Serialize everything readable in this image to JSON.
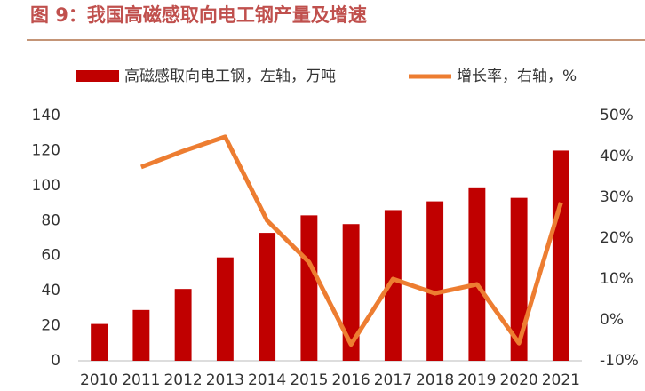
{
  "chart_data": {
    "type": "bar-line",
    "title": "图 9：我国高磁感取向电工钢产量及增速",
    "categories": [
      "2010",
      "2011",
      "2012",
      "2013",
      "2014",
      "2015",
      "2016",
      "2017",
      "2018",
      "2019",
      "2020",
      "2021"
    ],
    "series": [
      {
        "name": "高磁感取向电工钢，左轴，万吨",
        "type": "bar",
        "color": "#c00000",
        "values": [
          21,
          29,
          41,
          59,
          73,
          83,
          78,
          86,
          91,
          99,
          93,
          120
        ]
      },
      {
        "name": "增长率，右轴，%",
        "type": "line",
        "axis": "y2",
        "color": "#ed7d31",
        "values": [
          null,
          37.4,
          41.3,
          44.8,
          24.3,
          14.1,
          -6,
          10,
          6.5,
          8.7,
          -5.7,
          28.7
        ]
      }
    ],
    "ylim": [
      0,
      140
    ],
    "yticks": [
      0,
      20,
      40,
      60,
      80,
      100,
      120,
      140
    ],
    "y2lim": [
      -10,
      50
    ],
    "y2ticks": [
      {
        "value": -10,
        "label": "-10%"
      },
      {
        "value": 0,
        "label": "0%"
      },
      {
        "value": 10,
        "label": "10%"
      },
      {
        "value": 20,
        "label": "20%"
      },
      {
        "value": 30,
        "label": "30%"
      },
      {
        "value": 40,
        "label": "40%"
      },
      {
        "value": 50,
        "label": "50%"
      }
    ],
    "grid": false,
    "legend": "top"
  }
}
